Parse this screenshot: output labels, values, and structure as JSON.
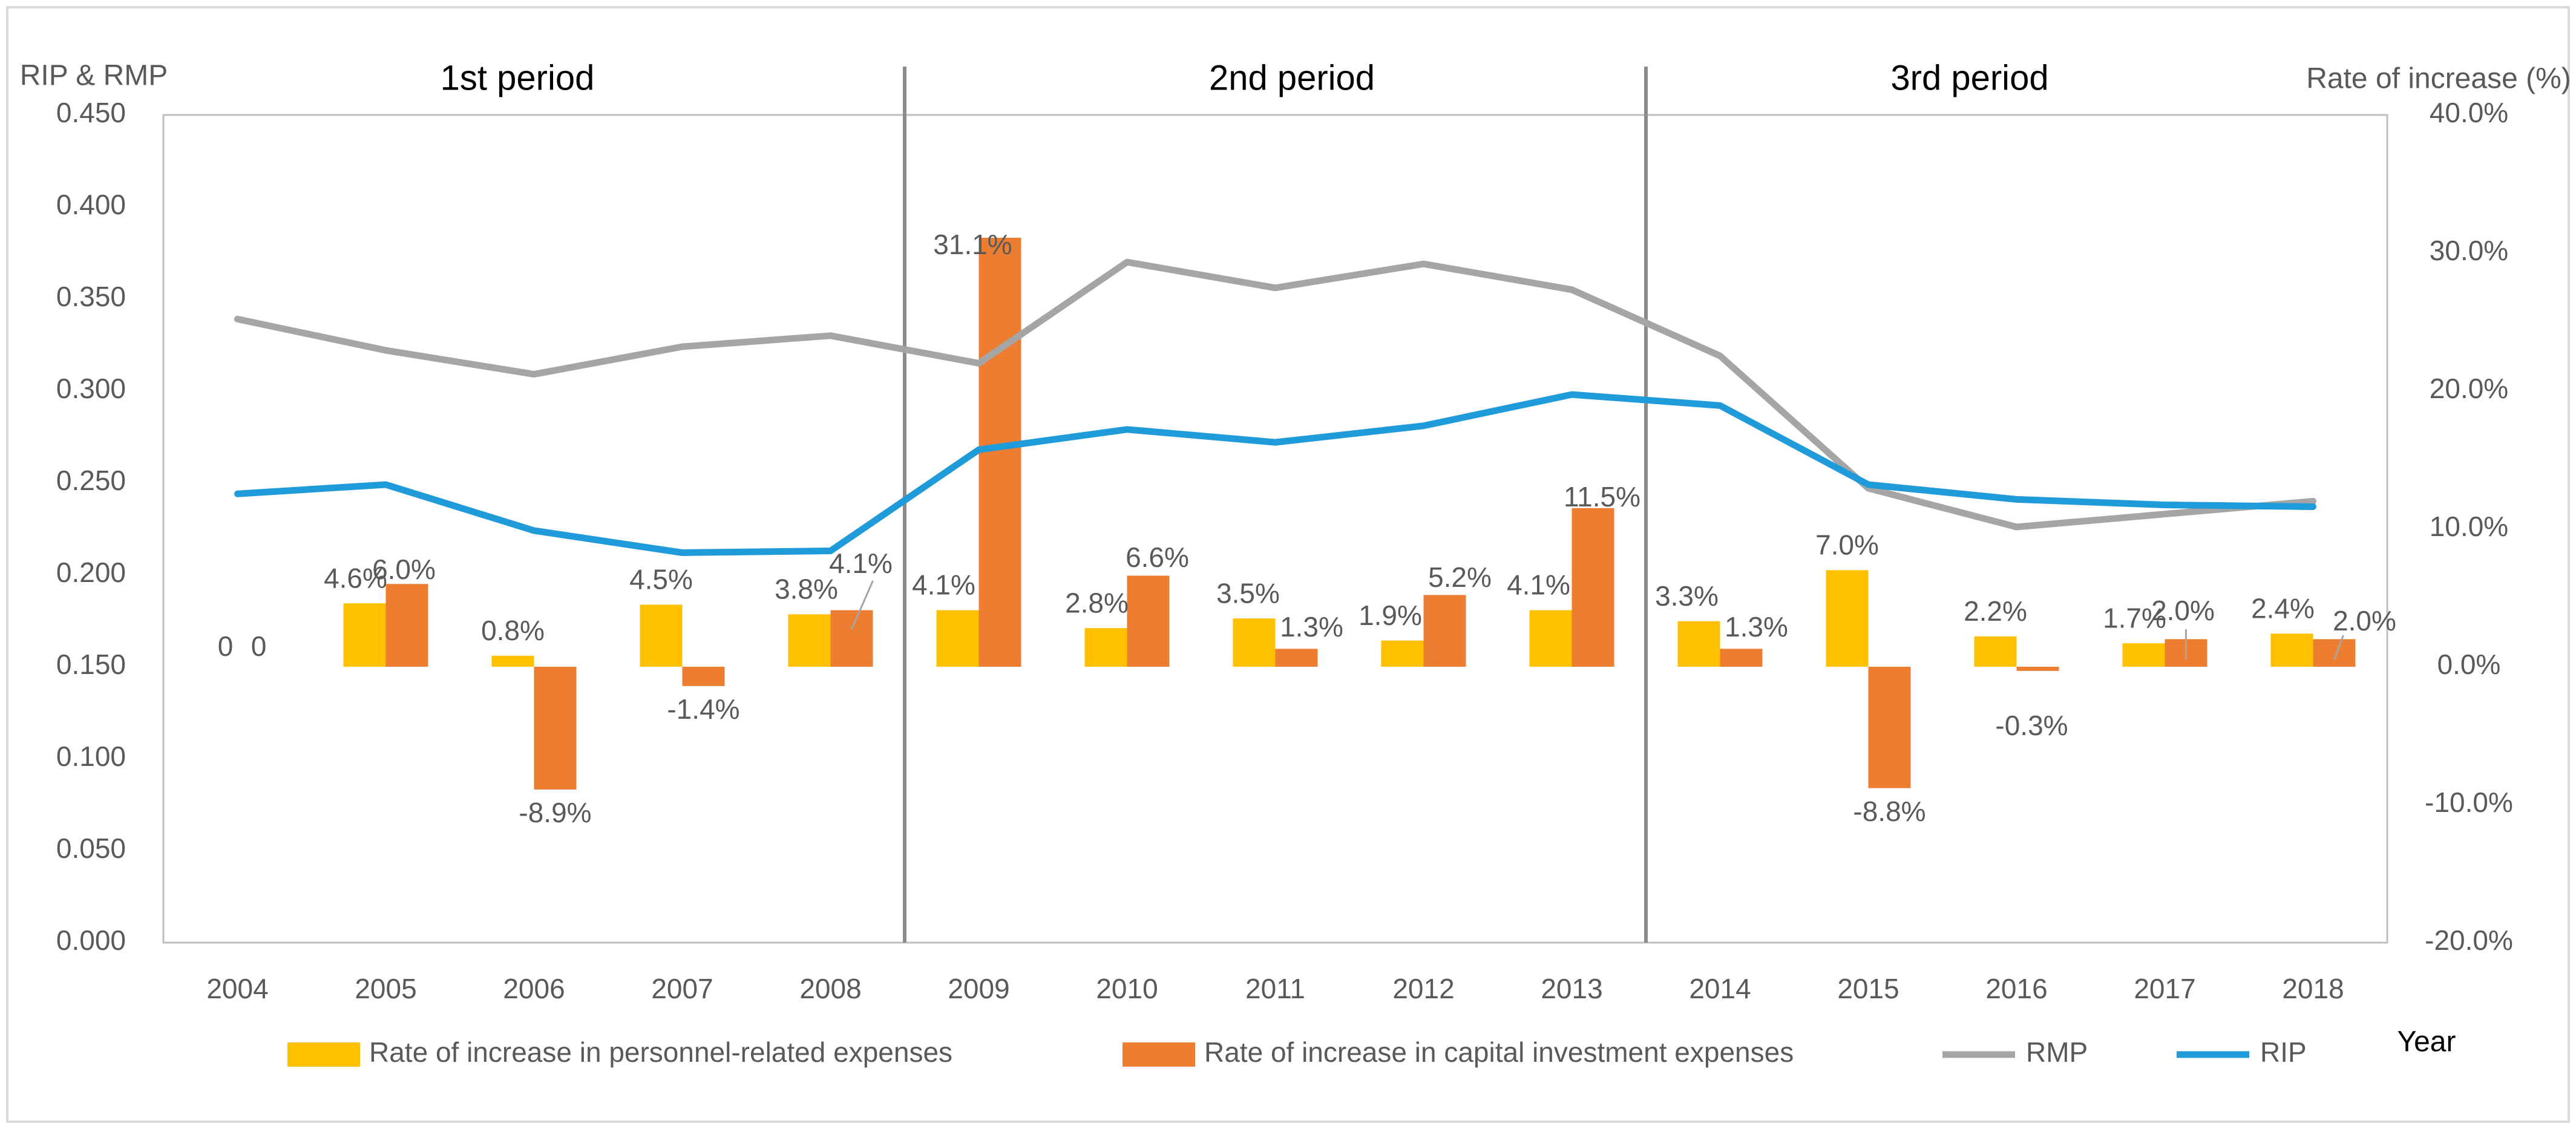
{
  "chart_data": {
    "type": "bar",
    "title": "",
    "xlabel": "Year",
    "ylabel_left": "RIP & RMP",
    "ylabel_right": "Rate of increase (%)",
    "categories": [
      "2004",
      "2005",
      "2006",
      "2007",
      "2008",
      "2009",
      "2010",
      "2011",
      "2012",
      "2013",
      "2014",
      "2015",
      "2016",
      "2017",
      "2018"
    ],
    "left_axis": {
      "min": 0,
      "max": 0.45,
      "ticks": [
        "0.000",
        "0.050",
        "0.100",
        "0.150",
        "0.200",
        "0.250",
        "0.300",
        "0.350",
        "0.400",
        "0.450"
      ]
    },
    "right_axis": {
      "min": -20,
      "max": 40,
      "ticks": [
        "-20.0%",
        "-10.0%",
        "0.0%",
        "10.0%",
        "20.0%",
        "30.0%",
        "40.0%"
      ]
    },
    "periods": [
      {
        "label": "1st period",
        "from": "2004",
        "to": "2008"
      },
      {
        "label": "2nd period",
        "from": "2009",
        "to": "2013"
      },
      {
        "label": "3rd period",
        "from": "2014",
        "to": "2018"
      }
    ],
    "series": [
      {
        "name": "Rate of increase in personnel-related expenses",
        "kind": "bar",
        "axis": "right",
        "color": "#FFC000",
        "values": [
          0,
          4.6,
          0.8,
          4.5,
          3.8,
          4.1,
          2.8,
          3.5,
          1.9,
          4.1,
          3.3,
          7.0,
          2.2,
          1.7,
          2.4
        ],
        "labels": [
          "0",
          "4.6%",
          "0.8%",
          "4.5%",
          "3.8%",
          "4.1%",
          "2.8%",
          "3.5%",
          "1.9%",
          "4.1%",
          "3.3%",
          "7.0%",
          "2.2%",
          "1.7%",
          "2.4%"
        ]
      },
      {
        "name": "Rate of increase in capital investment expenses",
        "kind": "bar",
        "axis": "right",
        "color": "#ED7D31",
        "values": [
          0,
          6.0,
          -8.9,
          -1.4,
          4.1,
          31.1,
          6.6,
          1.3,
          5.2,
          11.5,
          1.3,
          -8.8,
          -0.3,
          2.0,
          2.0
        ],
        "labels": [
          "0",
          "6.0%",
          "-8.9%",
          "-1.4%",
          "4.1%",
          "31.1%",
          "6.6%",
          "1.3%",
          "5.2%",
          "11.5%",
          "1.3%",
          "-8.8%",
          "-0.3%",
          "2.0%",
          "2.0%"
        ]
      },
      {
        "name": "RMP",
        "kind": "line",
        "axis": "left",
        "color": "#A5A5A5",
        "values": [
          0.339,
          0.322,
          0.309,
          0.324,
          0.33,
          0.315,
          0.37,
          0.356,
          0.369,
          0.355,
          0.319,
          0.247,
          0.226,
          0.233,
          0.24
        ]
      },
      {
        "name": "RIP",
        "kind": "line",
        "axis": "left",
        "color": "#1F9BDA",
        "values": [
          0.244,
          0.249,
          0.224,
          0.212,
          0.213,
          0.268,
          0.279,
          0.272,
          0.281,
          0.298,
          0.292,
          0.249,
          0.241,
          0.238,
          0.237
        ]
      }
    ],
    "legend": {
      "position": "bottom"
    }
  }
}
